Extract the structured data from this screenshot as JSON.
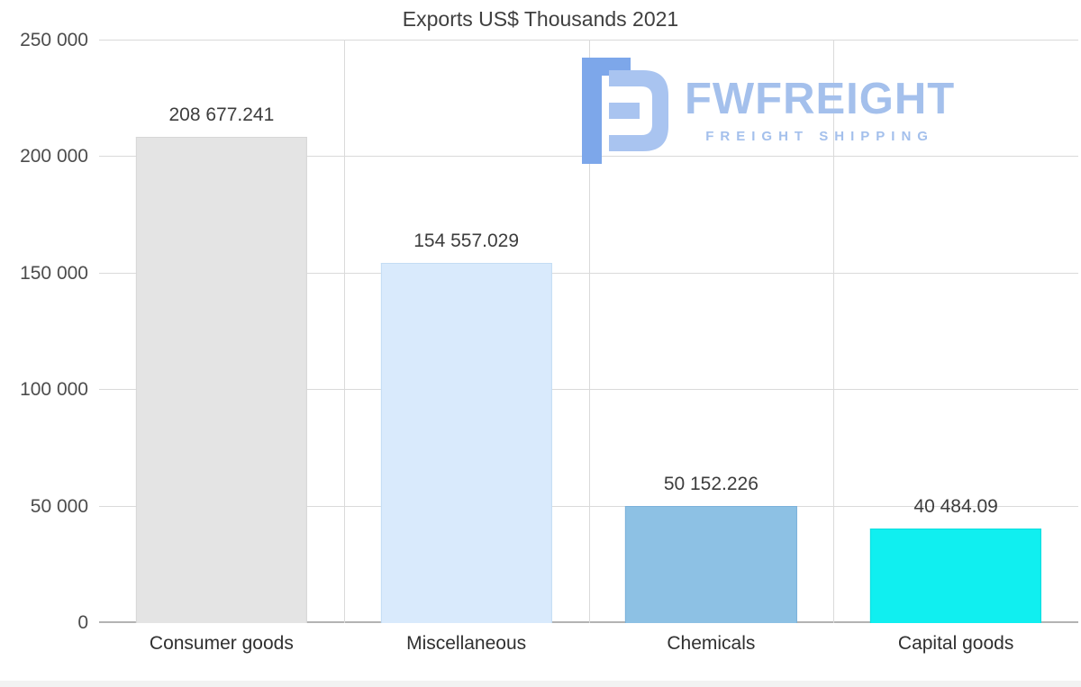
{
  "chart_data": {
    "type": "bar",
    "title": "Exports US$ Thousands 2021",
    "categories": [
      "Consumer goods",
      "Miscellaneous",
      "Chemicals",
      "Capital goods"
    ],
    "values": [
      208677.241,
      154557.029,
      50152.226,
      40484.09
    ],
    "value_labels": [
      "208 677.241",
      "154 557.029",
      "50 152.226",
      "40 484.09"
    ],
    "bar_colors": [
      "#e4e4e4",
      "#d9eafc",
      "#8dc1e4",
      "#10eff0"
    ],
    "bar_border_colors": [
      "#d7d7d7",
      "#c4ddf4",
      "#7ab1da",
      "#0cdcdd"
    ],
    "xlabel": "",
    "ylabel": "",
    "ylim": [
      0,
      250000
    ],
    "yticks": [
      0,
      50000,
      100000,
      150000,
      200000,
      250000
    ],
    "ytick_labels": [
      "0",
      "50 000",
      "100 000",
      "150 000",
      "200 000",
      "250 000"
    ],
    "grid": true,
    "legend": "none"
  },
  "watermark": {
    "name": "FWFREIGHT",
    "tagline": "FREIGHT SHIPPING",
    "text_color": "#a4c0ec",
    "logo_colors": {
      "dark": "#7da7ea",
      "light": "#a9c4f0"
    }
  }
}
